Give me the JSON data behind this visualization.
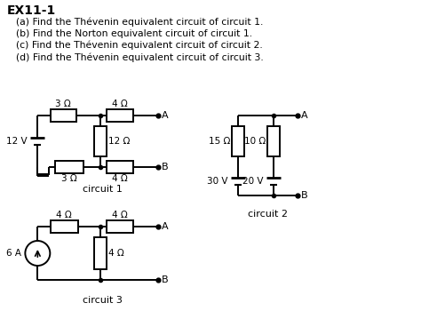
{
  "title": "EX11-1",
  "lines": [
    "(a) Find the Thévenin equivalent circuit of circuit 1.",
    "(b) Find the Norton equivalent circuit of circuit 1.",
    "(c) Find the Thévenin equivalent circuit of circuit 2.",
    "(d) Find the Thévenin equivalent circuit of circuit 3."
  ],
  "bg_color": "#ffffff",
  "text_color": "#000000",
  "circuit1_label": "circuit 1",
  "circuit2_label": "circuit 2",
  "circuit3_label": "circuit 3",
  "figsize": [
    4.74,
    3.5
  ],
  "dpi": 100
}
